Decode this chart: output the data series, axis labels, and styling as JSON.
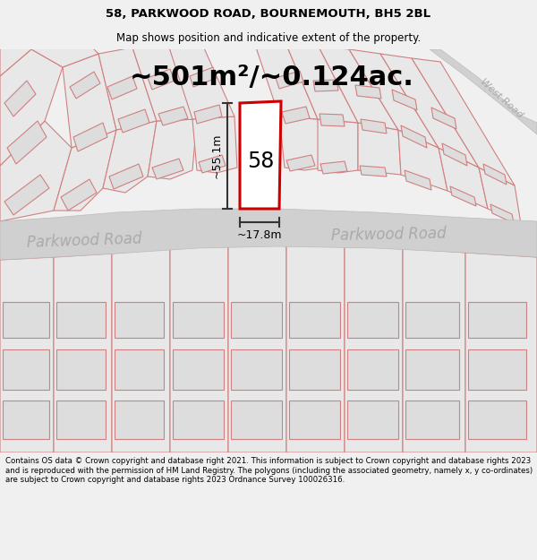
{
  "title": "58, PARKWOOD ROAD, BOURNEMOUTH, BH5 2BL",
  "subtitle": "Map shows position and indicative extent of the property.",
  "area_label": "~501m²/~0.124ac.",
  "number_label": "58",
  "width_label": "~17.8m",
  "height_label": "~55.1m",
  "road_label1": "Parkwood Road",
  "road_label2": "Parkwood Road",
  "road_label3": "West Road",
  "footer": "Contains OS data © Crown copyright and database right 2021. This information is subject to Crown copyright and database rights 2023 and is reproduced with the permission of HM Land Registry. The polygons (including the associated geometry, namely x, y co-ordinates) are subject to Crown copyright and database rights 2023 Ordnance Survey 100026316.",
  "map_gray": "#e8e8e8",
  "map_darker": "#d8d8d8",
  "pink": "#d08080",
  "road_gray": "#d0d0d0",
  "road_edge": "#bbbbbb",
  "plot_red": "#cc0000",
  "plot_fill": "#ffffff",
  "dim_color": "#333333",
  "road_text_color": "#aaaaaa",
  "bg_color": "#f0f0f0",
  "title_fontsize": 9.5,
  "subtitle_fontsize": 8.5,
  "area_fontsize": 22,
  "number_fontsize": 17,
  "dim_fontsize": 9,
  "road_fontsize": 12,
  "westroad_fontsize": 8,
  "footer_fontsize": 6.2
}
